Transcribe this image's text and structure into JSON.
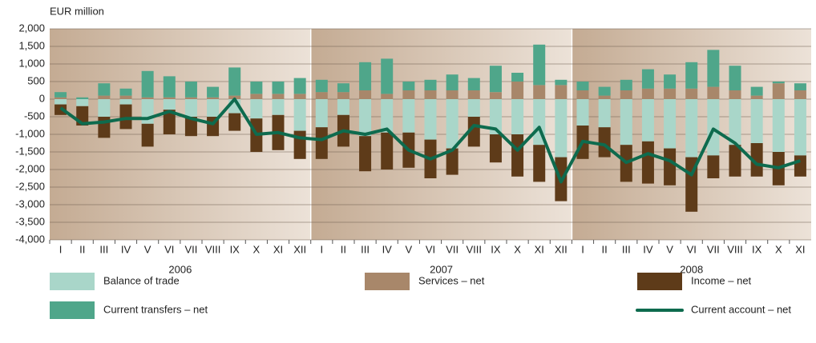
{
  "chart_data": {
    "type": "bar",
    "stacked": true,
    "y_label": "EUR million",
    "categories": [
      "I",
      "II",
      "III",
      "IV",
      "V",
      "VI",
      "VII",
      "VIII",
      "IX",
      "X",
      "XI",
      "XII",
      "I",
      "II",
      "III",
      "IV",
      "V",
      "VI",
      "VII",
      "VIII",
      "IX",
      "X",
      "XI",
      "XII",
      "I",
      "II",
      "III",
      "IV",
      "V",
      "VI",
      "VII",
      "VIII",
      "IX",
      "X",
      "XI"
    ],
    "x_groups": [
      "2006",
      "2007",
      "2008"
    ],
    "ylim": [
      -4000,
      2000
    ],
    "yticks": [
      {
        "value": 2000,
        "label": "2,000"
      },
      {
        "value": 1500,
        "label": "1,500"
      },
      {
        "value": 1000,
        "label": "1,000"
      },
      500,
      0,
      -500,
      {
        "value": -1000,
        "label": "-1,000"
      },
      {
        "value": -1500,
        "label": "-1,500"
      },
      {
        "value": -2000,
        "label": "-2,000"
      },
      {
        "value": -2500,
        "label": "-2,500"
      },
      {
        "value": -3000,
        "label": "-3,000"
      },
      {
        "value": -3500,
        "label": "-3,500"
      },
      {
        "value": -4000,
        "label": "-4,000"
      }
    ],
    "grid": true,
    "series": [
      {
        "name": "Balance of trade",
        "color": "#a9d6c9",
        "values": [
          -150,
          -200,
          -500,
          -150,
          -700,
          -300,
          -500,
          -500,
          -400,
          -550,
          -450,
          -900,
          -800,
          -450,
          -1050,
          -950,
          -950,
          -1150,
          -1400,
          -500,
          -1000,
          -1000,
          -1300,
          -1650,
          -750,
          -800,
          -1300,
          -1200,
          -1400,
          -1650,
          -1600,
          -1300,
          -1250,
          -1500,
          -1600
        ]
      },
      {
        "name": "Services – net",
        "color": "#a8876a",
        "values": [
          50,
          0,
          100,
          100,
          50,
          50,
          50,
          50,
          100,
          150,
          150,
          150,
          200,
          200,
          250,
          150,
          250,
          250,
          250,
          250,
          200,
          500,
          400,
          400,
          250,
          100,
          250,
          300,
          300,
          300,
          350,
          250,
          100,
          450,
          250
        ]
      },
      {
        "name": "Income – net",
        "color": "#5e3b19",
        "values": [
          -300,
          -550,
          -600,
          -700,
          -650,
          -700,
          -550,
          -550,
          -500,
          -950,
          -1000,
          -800,
          -900,
          -900,
          -1000,
          -1050,
          -1000,
          -1100,
          -750,
          -850,
          -800,
          -1200,
          -1050,
          -1250,
          -950,
          -850,
          -1050,
          -1200,
          -1050,
          -1550,
          -650,
          -900,
          -950,
          -950,
          -600
        ]
      },
      {
        "name": "Current transfers – net",
        "color": "#4fa68a",
        "values": [
          150,
          50,
          350,
          200,
          750,
          600,
          450,
          300,
          800,
          350,
          350,
          450,
          350,
          250,
          800,
          1000,
          250,
          300,
          450,
          350,
          750,
          250,
          1150,
          150,
          250,
          250,
          300,
          550,
          400,
          750,
          1050,
          700,
          250,
          50,
          200
        ]
      },
      {
        "name": "Current account – net",
        "color": "#0e6b4e",
        "type": "line",
        "values": [
          -250,
          -700,
          -650,
          -550,
          -550,
          -350,
          -550,
          -700,
          0,
          -1000,
          -950,
          -1100,
          -1150,
          -900,
          -1000,
          -850,
          -1450,
          -1700,
          -1450,
          -750,
          -850,
          -1450,
          -800,
          -2350,
          -1200,
          -1300,
          -1800,
          -1550,
          -1750,
          -2150,
          -850,
          -1250,
          -1850,
          -1950,
          -1750
        ]
      }
    ]
  }
}
